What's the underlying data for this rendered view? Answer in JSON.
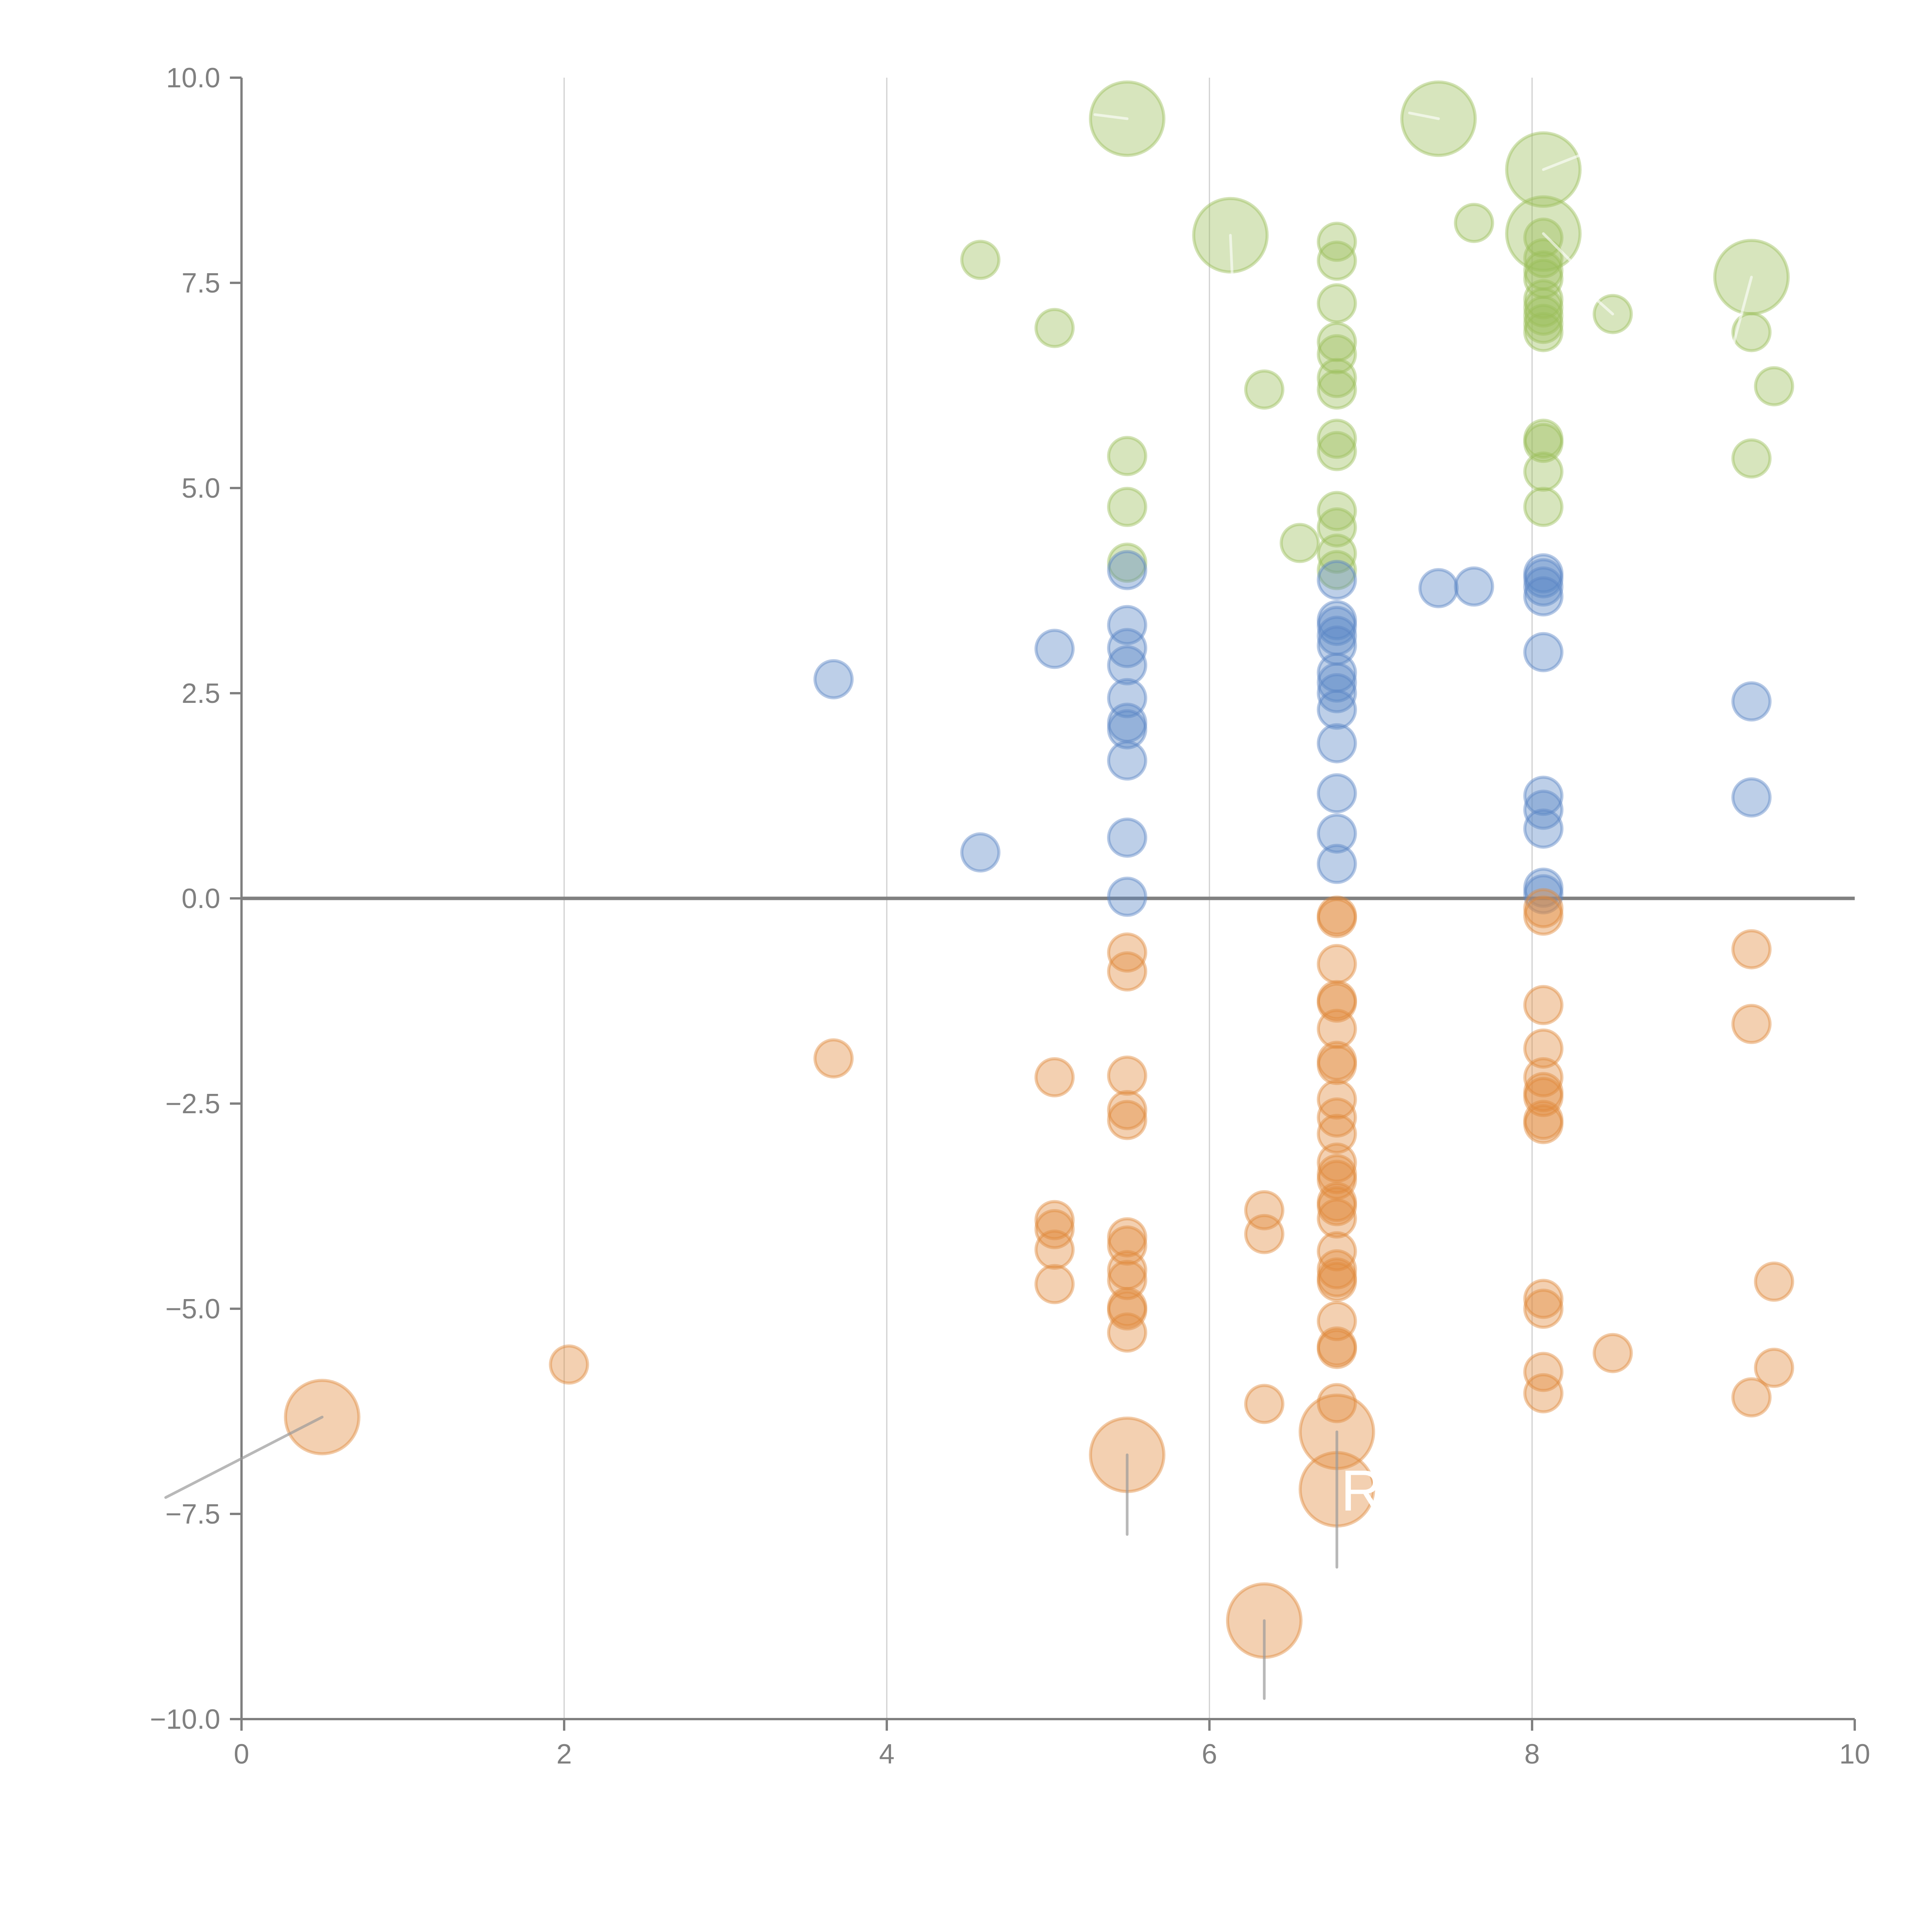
{
  "chart_data": {
    "type": "scatter",
    "title": "",
    "xlabel": "",
    "ylabel": "",
    "xlim": [
      0,
      10
    ],
    "ylim": [
      -10,
      10
    ],
    "x_ticks": [
      "0",
      "2",
      "4",
      "6",
      "8",
      "10"
    ],
    "y_ticks": [
      "10.0",
      "7.5",
      "5.0",
      "2.5",
      "0.0",
      "−2.5",
      "−5.0",
      "−7.5",
      "−10.0"
    ],
    "x_tick_values": [
      0,
      2,
      4,
      6,
      8,
      10
    ],
    "y_tick_values": [
      10,
      7.5,
      5,
      2.5,
      0,
      -2.5,
      -5,
      -7.5,
      -10
    ],
    "grid": "vertical",
    "zero_line": true,
    "colors": {
      "green": "#9bbf5a",
      "blue": "#5a86c5",
      "orange": "#e08a3c"
    },
    "annotation_label": "R",
    "series": [
      {
        "name": "green",
        "color": "#9bbf5a",
        "size": "small",
        "points": [
          [
            4.58,
            7.78
          ],
          [
            5.04,
            6.95
          ],
          [
            5.49,
            5.39
          ],
          [
            5.49,
            4.77
          ],
          [
            5.49,
            4.09
          ],
          [
            6.34,
            6.2
          ],
          [
            6.56,
            4.33
          ],
          [
            6.79,
            8.0
          ],
          [
            6.79,
            7.77
          ],
          [
            6.79,
            7.25
          ],
          [
            6.79,
            6.78
          ],
          [
            6.79,
            6.63
          ],
          [
            6.79,
            6.34
          ],
          [
            6.79,
            6.2
          ],
          [
            6.79,
            5.6
          ],
          [
            6.79,
            5.45
          ],
          [
            6.79,
            4.72
          ],
          [
            6.79,
            4.52
          ],
          [
            6.79,
            4.2
          ],
          [
            6.79,
            4.0
          ],
          [
            7.64,
            8.23
          ],
          [
            8.07,
            8.05
          ],
          [
            8.07,
            7.8
          ],
          [
            8.07,
            7.65
          ],
          [
            8.07,
            7.55
          ],
          [
            8.07,
            7.3
          ],
          [
            8.07,
            7.2
          ],
          [
            8.07,
            7.1
          ],
          [
            8.07,
            7.0
          ],
          [
            8.07,
            6.9
          ],
          [
            8.07,
            5.6
          ],
          [
            8.07,
            5.55
          ],
          [
            8.07,
            5.2
          ],
          [
            8.07,
            4.77
          ],
          [
            8.5,
            7.12
          ],
          [
            9.36,
            6.9
          ],
          [
            9.5,
            6.24
          ],
          [
            9.36,
            5.36
          ]
        ]
      },
      {
        "name": "green-large",
        "color": "#9bbf5a",
        "size": "large",
        "points": [
          [
            5.49,
            9.5
          ],
          [
            6.13,
            8.08
          ],
          [
            7.42,
            9.5
          ],
          [
            8.07,
            8.88
          ],
          [
            8.07,
            8.1
          ],
          [
            9.36,
            7.57
          ]
        ]
      },
      {
        "name": "blue",
        "color": "#5a86c5",
        "size": "small",
        "points": [
          [
            3.67,
            2.67
          ],
          [
            4.58,
            0.56
          ],
          [
            5.04,
            3.04
          ],
          [
            5.49,
            4.0
          ],
          [
            5.49,
            3.33
          ],
          [
            5.49,
            3.05
          ],
          [
            5.49,
            2.84
          ],
          [
            5.49,
            2.44
          ],
          [
            5.49,
            2.14
          ],
          [
            5.49,
            2.06
          ],
          [
            5.49,
            1.68
          ],
          [
            5.49,
            0.74
          ],
          [
            5.49,
            0.02
          ],
          [
            6.79,
            3.88
          ],
          [
            6.79,
            3.39
          ],
          [
            6.79,
            3.32
          ],
          [
            6.79,
            3.2
          ],
          [
            6.79,
            3.08
          ],
          [
            6.79,
            2.75
          ],
          [
            6.79,
            2.63
          ],
          [
            6.79,
            2.5
          ],
          [
            6.79,
            2.3
          ],
          [
            6.79,
            1.89
          ],
          [
            6.79,
            1.28
          ],
          [
            6.79,
            0.79
          ],
          [
            6.79,
            0.42
          ],
          [
            7.42,
            3.78
          ],
          [
            7.64,
            3.8
          ],
          [
            8.07,
            3.96
          ],
          [
            8.07,
            3.9
          ],
          [
            8.07,
            3.8
          ],
          [
            8.07,
            3.68
          ],
          [
            8.07,
            3.0
          ],
          [
            8.07,
            1.25
          ],
          [
            8.07,
            1.08
          ],
          [
            8.07,
            0.85
          ],
          [
            8.07,
            0.13
          ],
          [
            8.07,
            0.05
          ],
          [
            9.36,
            2.4
          ],
          [
            9.36,
            1.23
          ]
        ]
      },
      {
        "name": "orange",
        "color": "#e08a3c",
        "size": "small",
        "points": [
          [
            2.03,
            -5.68
          ],
          [
            3.67,
            -1.95
          ],
          [
            5.04,
            -2.18
          ],
          [
            5.04,
            -3.92
          ],
          [
            5.04,
            -4.03
          ],
          [
            5.04,
            -4.28
          ],
          [
            5.04,
            -4.7
          ],
          [
            5.49,
            -0.66
          ],
          [
            5.49,
            -0.89
          ],
          [
            5.49,
            -2.16
          ],
          [
            5.49,
            -2.58
          ],
          [
            5.49,
            -2.7
          ],
          [
            5.49,
            -4.13
          ],
          [
            5.49,
            -4.23
          ],
          [
            5.49,
            -4.53
          ],
          [
            5.49,
            -4.65
          ],
          [
            5.49,
            -4.98
          ],
          [
            5.49,
            -5.02
          ],
          [
            5.49,
            -5.29
          ],
          [
            6.34,
            -3.8
          ],
          [
            6.34,
            -4.09
          ],
          [
            6.34,
            -6.16
          ],
          [
            6.79,
            -0.21
          ],
          [
            6.79,
            -0.24
          ],
          [
            6.79,
            -0.8
          ],
          [
            6.79,
            -1.24
          ],
          [
            6.79,
            -1.27
          ],
          [
            6.79,
            -1.59
          ],
          [
            6.79,
            -1.98
          ],
          [
            6.79,
            -2.03
          ],
          [
            6.79,
            -2.45
          ],
          [
            6.79,
            -2.67
          ],
          [
            6.79,
            -2.87
          ],
          [
            6.79,
            -3.22
          ],
          [
            6.79,
            -3.36
          ],
          [
            6.79,
            -3.43
          ],
          [
            6.79,
            -3.7
          ],
          [
            6.79,
            -3.75
          ],
          [
            6.79,
            -3.9
          ],
          [
            6.79,
            -4.3
          ],
          [
            6.79,
            -4.52
          ],
          [
            6.79,
            -4.62
          ],
          [
            6.79,
            -4.67
          ],
          [
            6.79,
            -5.15
          ],
          [
            6.79,
            -5.46
          ],
          [
            6.79,
            -5.49
          ],
          [
            6.79,
            -6.15
          ],
          [
            8.07,
            -0.12
          ],
          [
            8.07,
            -0.21
          ],
          [
            8.07,
            -1.3
          ],
          [
            8.07,
            -1.83
          ],
          [
            8.07,
            -2.18
          ],
          [
            8.07,
            -2.36
          ],
          [
            8.07,
            -2.42
          ],
          [
            8.07,
            -2.7
          ],
          [
            8.07,
            -2.75
          ],
          [
            8.07,
            -4.88
          ],
          [
            8.07,
            -5.0
          ],
          [
            8.07,
            -5.77
          ],
          [
            8.07,
            -6.03
          ],
          [
            8.5,
            -5.54
          ],
          [
            9.36,
            -0.62
          ],
          [
            9.36,
            -1.53
          ],
          [
            9.36,
            -6.08
          ],
          [
            9.5,
            -4.67
          ],
          [
            9.5,
            -5.72
          ]
        ]
      },
      {
        "name": "orange-large",
        "color": "#e08a3c",
        "size": "large",
        "points": [
          [
            0.5,
            -6.32
          ],
          [
            5.49,
            -6.78
          ],
          [
            6.34,
            -8.8
          ],
          [
            6.79,
            -6.5
          ],
          [
            6.79,
            -7.2
          ]
        ]
      }
    ],
    "annotations": [
      {
        "point": [
          0.5,
          -6.32
        ],
        "line_to": [
          -0.47,
          -7.3
        ],
        "line_color": "gray"
      },
      {
        "point": [
          5.49,
          -6.78
        ],
        "line_to": [
          5.49,
          -7.75
        ],
        "line_color": "gray"
      },
      {
        "point": [
          6.34,
          -8.8
        ],
        "line_to": [
          6.34,
          -9.75
        ],
        "line_color": "gray"
      },
      {
        "point": [
          6.79,
          -6.5
        ],
        "line_to": [
          6.79,
          -8.15
        ],
        "line_color": "gray"
      },
      {
        "point": [
          5.49,
          9.5
        ],
        "line_to": [
          5.29,
          9.55
        ],
        "line_color": "white"
      },
      {
        "point": [
          7.42,
          9.5
        ],
        "line_to": [
          7.24,
          9.57
        ],
        "line_color": "white"
      },
      {
        "point": [
          8.07,
          8.88
        ],
        "line_to": [
          8.29,
          9.05
        ],
        "line_color": "white"
      },
      {
        "point": [
          6.13,
          8.08
        ],
        "line_to": [
          6.15,
          7.2
        ],
        "line_color": "white"
      },
      {
        "point": [
          8.07,
          8.1
        ],
        "line_to": [
          8.35,
          7.55
        ],
        "line_color": "white"
      },
      {
        "point": [
          8.5,
          7.12
        ],
        "line_to": [
          8.34,
          7.4
        ],
        "line_color": "white"
      },
      {
        "point": [
          9.36,
          7.57
        ],
        "line_to": [
          9.22,
          6.55
        ],
        "line_color": "white"
      }
    ]
  }
}
